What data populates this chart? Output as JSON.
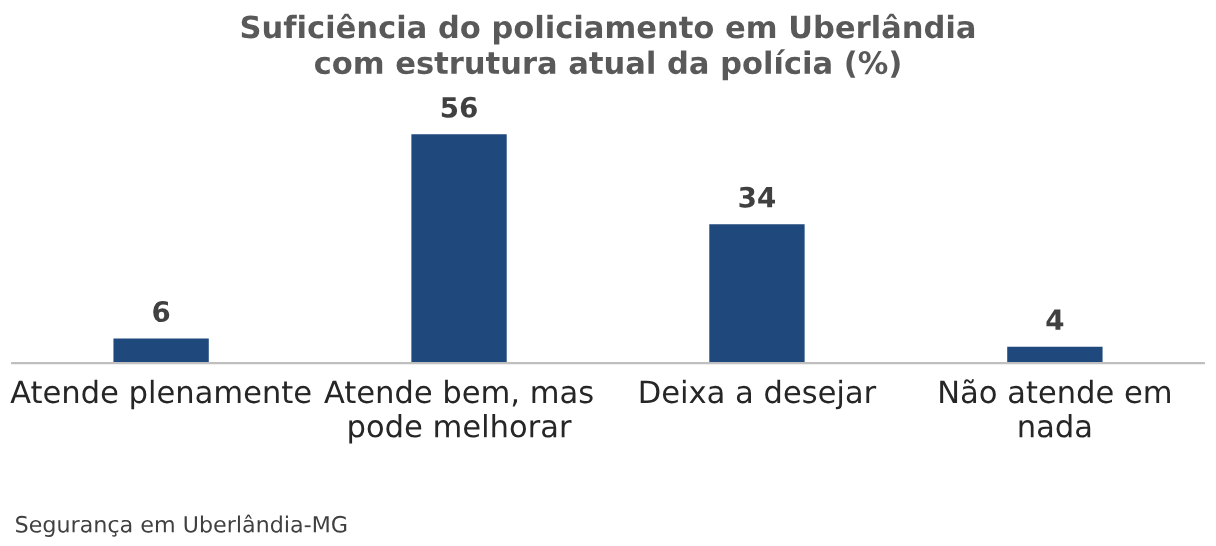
{
  "chart_data": {
    "type": "bar",
    "title": "Suficiência do policiamento em Uberlândia\ncom estrutura atual da polícia (%)",
    "categories": [
      "Atende plenamente",
      "Atende bem, mas\npode melhorar",
      "Deixa a desejar",
      "Não atende em\nnada"
    ],
    "values": [
      6,
      56,
      34,
      4
    ],
    "color": "#1f497d",
    "data_labels": true,
    "tick_labels": "x",
    "grid": false,
    "legend": false,
    "annotations": [
      "Segurança em Uberlândia-MG"
    ]
  }
}
